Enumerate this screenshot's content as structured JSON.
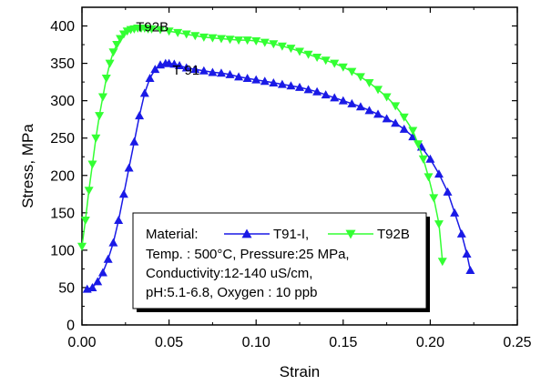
{
  "chart_data": {
    "type": "scatter",
    "xlabel": "Strain",
    "ylabel": "Stress, MPa",
    "xlim": [
      0.0,
      0.25
    ],
    "ylim": [
      0,
      425
    ],
    "x_ticks": [
      "0.00",
      "0.05",
      "0.10",
      "0.15",
      "0.20",
      "0.25"
    ],
    "y_ticks": [
      "0",
      "50",
      "100",
      "150",
      "200",
      "250",
      "300",
      "350",
      "400"
    ],
    "grid": false,
    "legend_position": "bottom-center",
    "colors": {
      "T91": "#1a1ae6",
      "T92": "#33ff33"
    },
    "annotations": [
      {
        "text": "T92B",
        "x": 0.031,
        "y": 393
      },
      {
        "text": "T 91",
        "x": 0.052,
        "y": 335
      }
    ],
    "legend": {
      "prefix": "Material:",
      "lines": [
        "Temp. : 500°C, Pressure:25 MPa,",
        "Conductivity:12-140 uS/cm,",
        "pH:5.1-6.8, Oxygen : 10 ppb"
      ]
    },
    "series": [
      {
        "name": "T91-I,",
        "marker": "triangle-up",
        "x": [
          0.003,
          0.006,
          0.009,
          0.012,
          0.015,
          0.018,
          0.021,
          0.024,
          0.027,
          0.03,
          0.033,
          0.036,
          0.039,
          0.042,
          0.045,
          0.048,
          0.05,
          0.053,
          0.056,
          0.06,
          0.065,
          0.07,
          0.075,
          0.08,
          0.085,
          0.09,
          0.095,
          0.1,
          0.105,
          0.11,
          0.115,
          0.12,
          0.125,
          0.13,
          0.135,
          0.14,
          0.145,
          0.15,
          0.155,
          0.16,
          0.165,
          0.17,
          0.175,
          0.18,
          0.185,
          0.19,
          0.195,
          0.2,
          0.205,
          0.21,
          0.214,
          0.218,
          0.221,
          0.223
        ],
        "y": [
          48,
          50,
          58,
          70,
          88,
          110,
          140,
          175,
          210,
          245,
          280,
          310,
          330,
          342,
          348,
          350,
          350,
          349,
          347,
          344,
          342,
          340,
          338,
          337,
          335,
          332,
          330,
          328,
          326,
          324,
          322,
          320,
          318,
          315,
          312,
          308,
          304,
          300,
          296,
          292,
          287,
          282,
          276,
          270,
          262,
          252,
          238,
          222,
          202,
          178,
          150,
          122,
          95,
          73
        ]
      },
      {
        "name": "T92B",
        "marker": "triangle-down",
        "x": [
          0.0,
          0.002,
          0.004,
          0.006,
          0.008,
          0.01,
          0.012,
          0.014,
          0.016,
          0.018,
          0.02,
          0.022,
          0.024,
          0.026,
          0.028,
          0.03,
          0.032,
          0.034,
          0.036,
          0.038,
          0.04,
          0.045,
          0.05,
          0.055,
          0.06,
          0.065,
          0.07,
          0.075,
          0.08,
          0.085,
          0.09,
          0.095,
          0.1,
          0.105,
          0.11,
          0.115,
          0.12,
          0.125,
          0.13,
          0.135,
          0.14,
          0.145,
          0.15,
          0.155,
          0.16,
          0.165,
          0.17,
          0.175,
          0.18,
          0.185,
          0.19,
          0.193,
          0.196,
          0.199,
          0.202,
          0.205,
          0.207
        ],
        "y": [
          105,
          140,
          180,
          215,
          250,
          280,
          305,
          330,
          350,
          365,
          375,
          383,
          389,
          393,
          395,
          396,
          397,
          397,
          397,
          396,
          396,
          395,
          393,
          391,
          389,
          387,
          385,
          384,
          383,
          382,
          381,
          381,
          380,
          378,
          376,
          373,
          370,
          366,
          362,
          358,
          354,
          350,
          345,
          339,
          332,
          324,
          315,
          305,
          293,
          278,
          260,
          242,
          222,
          198,
          170,
          135,
          85
        ]
      }
    ]
  }
}
